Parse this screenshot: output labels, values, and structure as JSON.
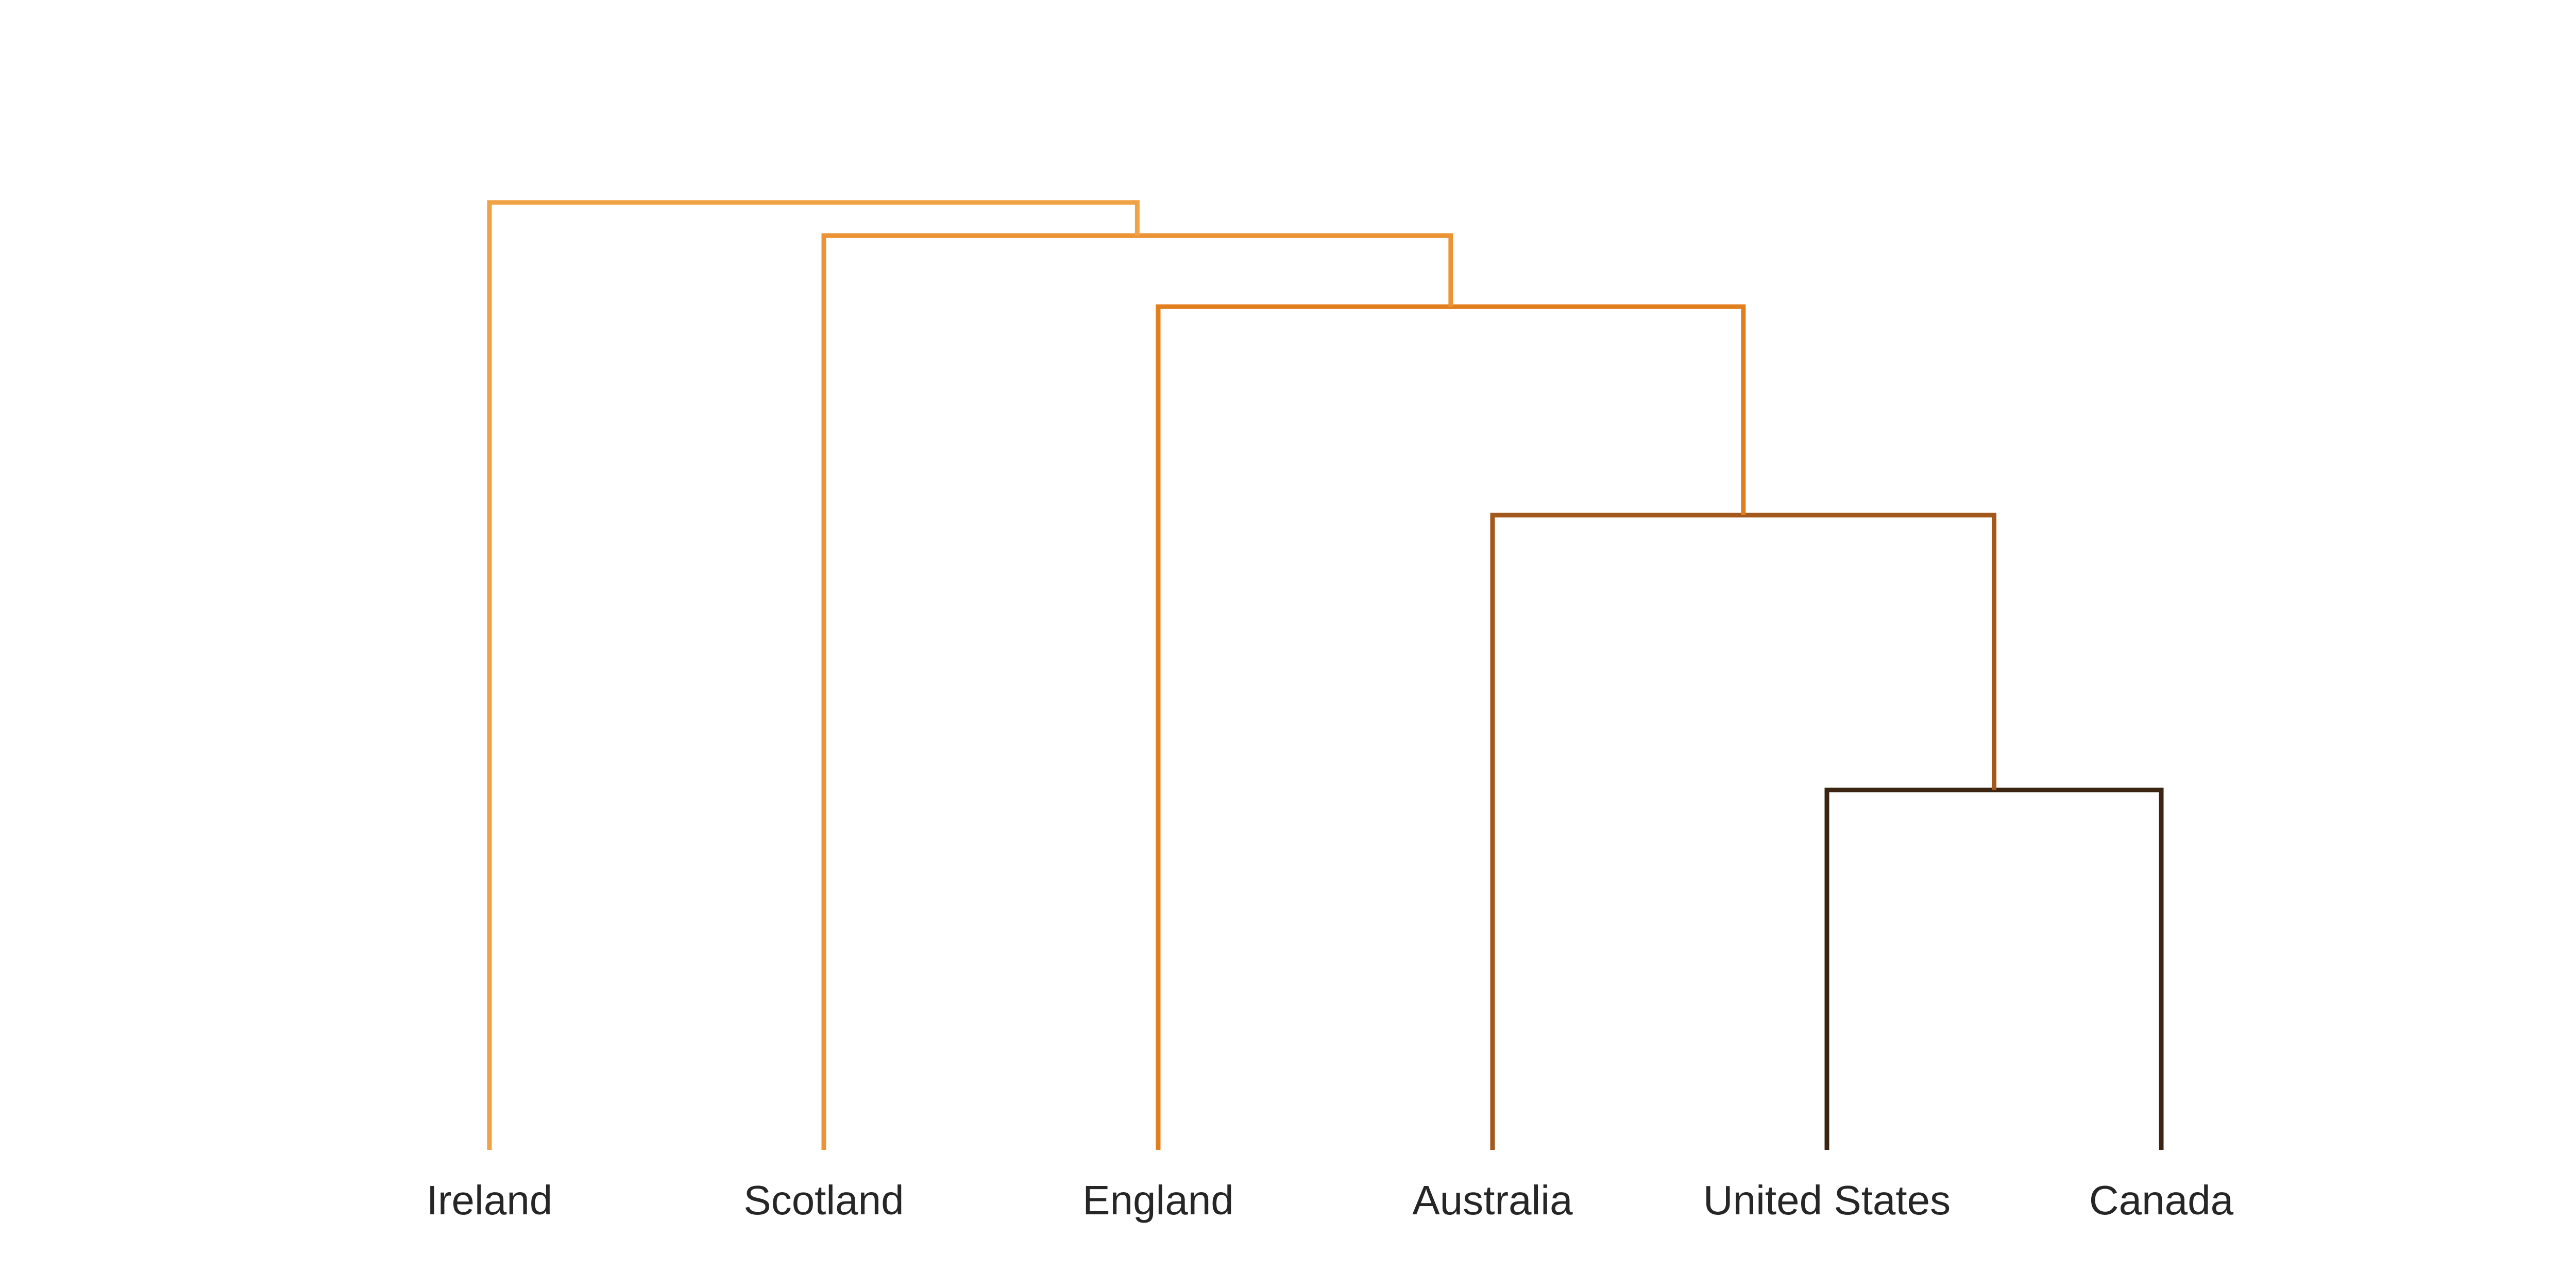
{
  "dendrogram": {
    "leaves": [
      "Ireland",
      "Scotland",
      "England",
      "Australia",
      "United States",
      "Canada"
    ],
    "merges": [
      {
        "left": "United States",
        "right": "Canada",
        "height": 0.38,
        "color": "#3b2411"
      },
      {
        "left": "Australia",
        "right": "merge-0",
        "height": 0.67,
        "color": "#a3591b"
      },
      {
        "left": "England",
        "right": "merge-1",
        "height": 0.89,
        "color": "#e17e1d"
      },
      {
        "left": "Scotland",
        "right": "merge-2",
        "height": 0.965,
        "color": "#ec9336"
      },
      {
        "left": "Ireland",
        "right": "merge-3",
        "height": 1.0,
        "color": "#f0a245"
      }
    ],
    "leaf_colors": {
      "Ireland": "#f0a245",
      "Scotland": "#ec9336",
      "England": "#e17e1d",
      "Australia": "#a3591b",
      "United States": "#3b2411",
      "Canada": "#3b2411"
    }
  }
}
